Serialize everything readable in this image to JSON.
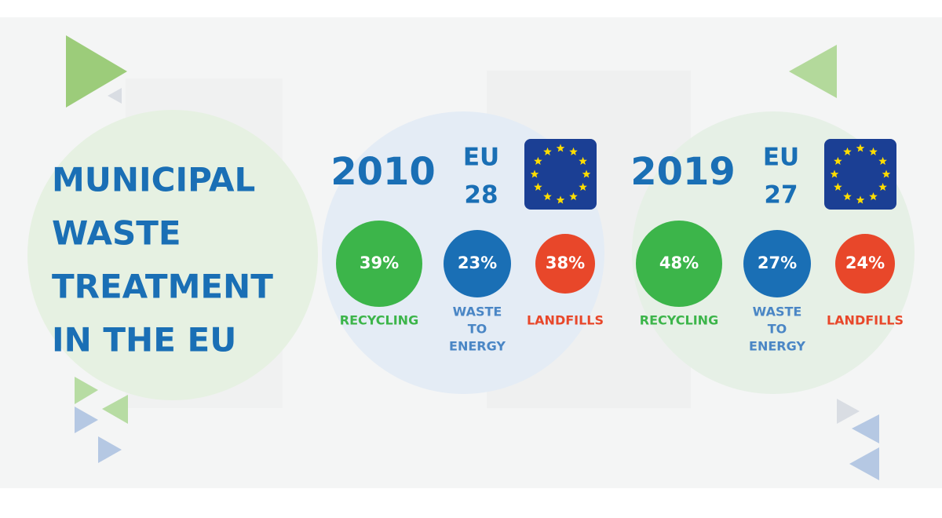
{
  "title_lines": [
    "MUNICIPAL",
    "WASTE",
    "TREATMENT",
    "IN THE EU"
  ],
  "panels": [
    {
      "year": "2010",
      "region_lines": [
        "EU",
        "28"
      ],
      "items": [
        {
          "value": "39%",
          "label_lines": [
            "RECYCLING"
          ]
        },
        {
          "value": "23%",
          "label_lines": [
            "WASTE",
            "TO",
            "ENERGY"
          ]
        },
        {
          "value": "38%",
          "label_lines": [
            "LANDFILLS"
          ]
        }
      ]
    },
    {
      "year": "2019",
      "region_lines": [
        "EU",
        "27"
      ],
      "items": [
        {
          "value": "48%",
          "label_lines": [
            "RECYCLING"
          ]
        },
        {
          "value": "27%",
          "label_lines": [
            "WASTE",
            "TO",
            "ENERGY"
          ]
        },
        {
          "value": "24%",
          "label_lines": [
            "LANDFILLS"
          ]
        }
      ]
    }
  ]
}
